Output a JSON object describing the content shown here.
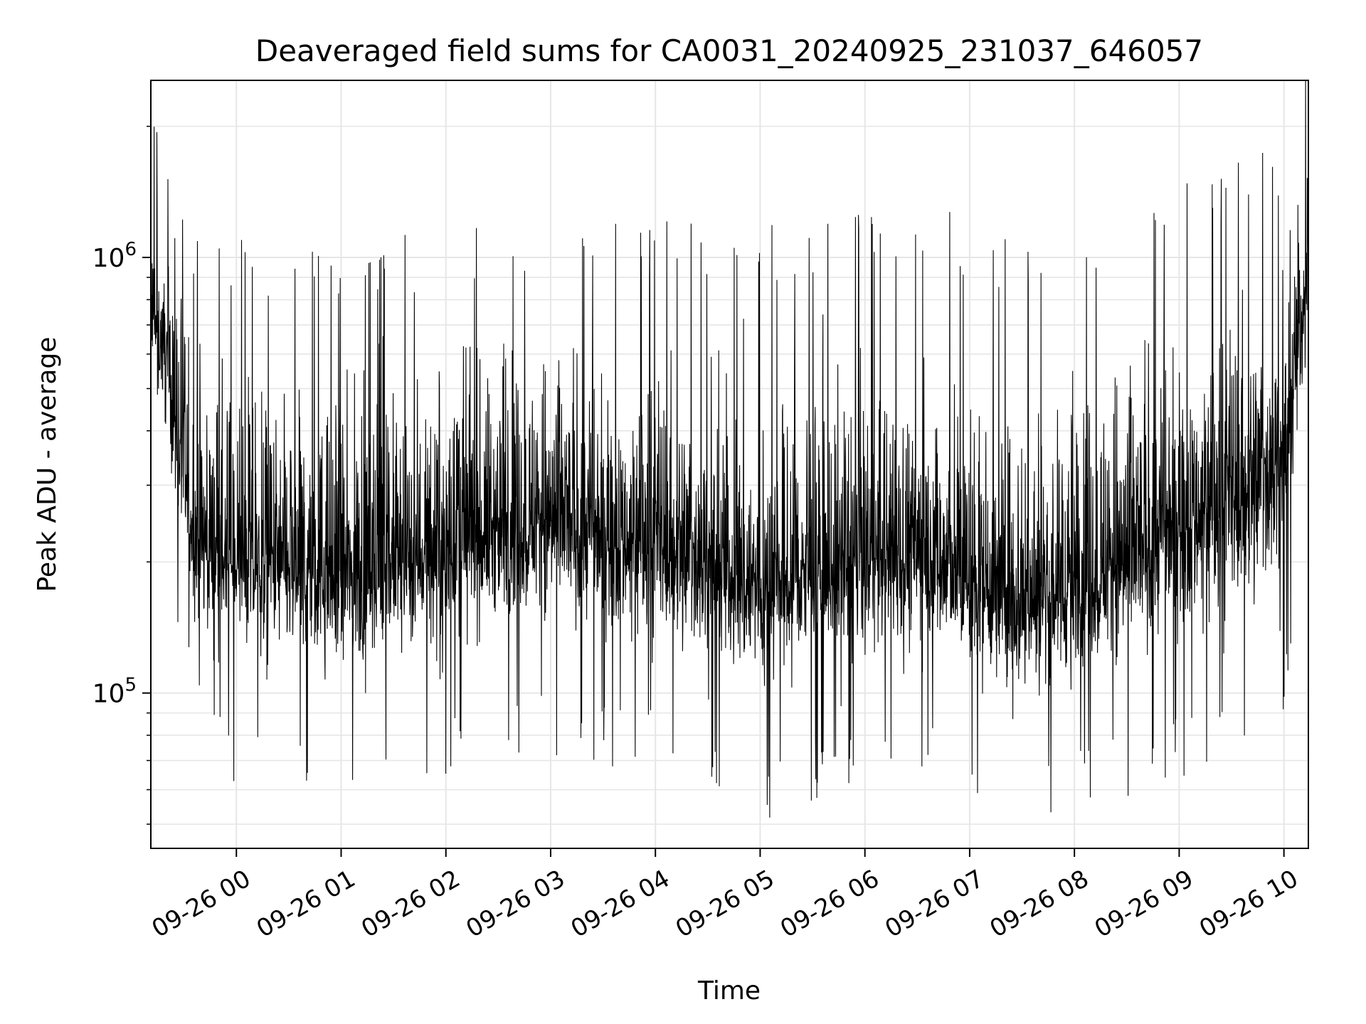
{
  "chart_data": {
    "type": "line",
    "title": "Deaveraged field sums for CA0031_20240925_231037_646057",
    "xlabel": "Time",
    "ylabel": "Peak ADU - average",
    "y_scale": "log",
    "ylim": [
      44000,
      2550000
    ],
    "xlim": [
      "2024-09-25T23:11:00",
      "2024-09-26T10:14:00"
    ],
    "grid": true,
    "line_color": "#000000",
    "grid_color": "#e6e6e6",
    "x_ticks": [
      {
        "label": "09-26 00",
        "x": "2024-09-26T00:00:00"
      },
      {
        "label": "09-26 01",
        "x": "2024-09-26T01:00:00"
      },
      {
        "label": "09-26 02",
        "x": "2024-09-26T02:00:00"
      },
      {
        "label": "09-26 03",
        "x": "2024-09-26T03:00:00"
      },
      {
        "label": "09-26 04",
        "x": "2024-09-26T04:00:00"
      },
      {
        "label": "09-26 05",
        "x": "2024-09-26T05:00:00"
      },
      {
        "label": "09-26 06",
        "x": "2024-09-26T06:00:00"
      },
      {
        "label": "09-26 07",
        "x": "2024-09-26T07:00:00"
      },
      {
        "label": "09-26 08",
        "x": "2024-09-26T08:00:00"
      },
      {
        "label": "09-26 09",
        "x": "2024-09-26T09:00:00"
      },
      {
        "label": "09-26 10",
        "x": "2024-09-26T10:00:00"
      }
    ],
    "y_ticks": [
      {
        "base": "10",
        "exp": "5",
        "value": 100000
      },
      {
        "base": "10",
        "exp": "6",
        "value": 1000000
      }
    ],
    "series_envelope": {
      "description_of_series": "dense noisy signal, per-hour typical low / median / high",
      "x": [
        "2024-09-25T23:11:00",
        "2024-09-25T23:20:00",
        "2024-09-25T23:35:00",
        "2024-09-26T00:00:00",
        "2024-09-26T00:30:00",
        "2024-09-26T01:00:00",
        "2024-09-26T01:30:00",
        "2024-09-26T02:00:00",
        "2024-09-26T02:30:00",
        "2024-09-26T03:00:00",
        "2024-09-26T03:30:00",
        "2024-09-26T04:00:00",
        "2024-09-26T04:30:00",
        "2024-09-26T05:00:00",
        "2024-09-26T05:30:00",
        "2024-09-26T06:00:00",
        "2024-09-26T06:30:00",
        "2024-09-26T07:00:00",
        "2024-09-26T07:30:00",
        "2024-09-26T08:00:00",
        "2024-09-26T08:30:00",
        "2024-09-26T09:00:00",
        "2024-09-26T09:30:00",
        "2024-09-26T10:00:00",
        "2024-09-26T10:14:00"
      ],
      "low": [
        400000,
        300000,
        110000,
        85000,
        80000,
        75000,
        85000,
        90000,
        95000,
        100000,
        95000,
        95000,
        85000,
        70000,
        80000,
        85000,
        90000,
        80000,
        72000,
        75000,
        80000,
        90000,
        95000,
        120000,
        450000
      ],
      "median": [
        700000,
        600000,
        230000,
        200000,
        190000,
        180000,
        200000,
        220000,
        240000,
        250000,
        230000,
        220000,
        200000,
        170000,
        190000,
        200000,
        210000,
        180000,
        160000,
        180000,
        200000,
        250000,
        280000,
        350000,
        1000000
      ],
      "high": [
        1900000,
        1500000,
        900000,
        800000,
        800000,
        750000,
        800000,
        850000,
        900000,
        950000,
        900000,
        900000,
        850000,
        850000,
        900000,
        950000,
        1000000,
        850000,
        800000,
        900000,
        1000000,
        1100000,
        1200000,
        1300000,
        2300000
      ]
    }
  }
}
